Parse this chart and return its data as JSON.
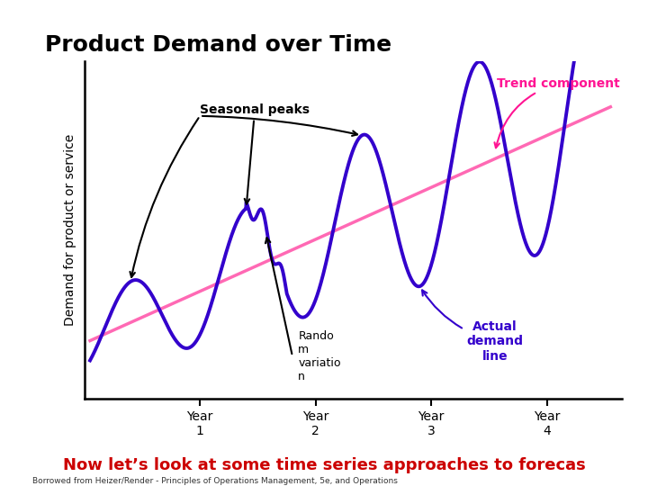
{
  "title": "Product Demand over Time",
  "ylabel": "Demand for product or service",
  "background_color": "#ffffff",
  "header_bar_color": "#8B1A1A",
  "title_color": "#000000",
  "trend_color": "#FF69B4",
  "demand_color": "#3300CC",
  "bottom_text": "Now let’s look at some time series approaches to forecas",
  "bottom_text_color": "#CC0000",
  "annotation_seasonal": "Seasonal peaks",
  "annotation_random": "Rando\nm\nvariatio\nn",
  "annotation_actual": "Actual\ndemand\nline",
  "annotation_trend": "Trend component",
  "footnote": "Borrowed from Heizer/Render - Principles of Operations Management, 5e, and Operations"
}
